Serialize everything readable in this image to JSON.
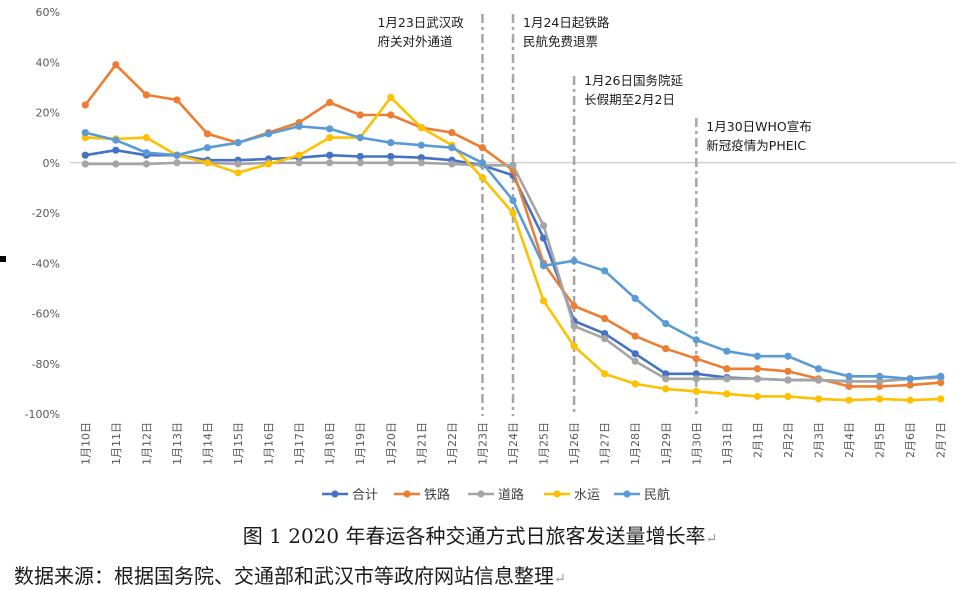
{
  "chart_data": {
    "type": "line",
    "categories": [
      "1月10日",
      "1月11日",
      "1月12日",
      "1月13日",
      "1月14日",
      "1月15日",
      "1月16日",
      "1月17日",
      "1月18日",
      "1月19日",
      "1月20日",
      "1月21日",
      "1月22日",
      "1月23日",
      "1月24日",
      "1月25日",
      "1月26日",
      "1月27日",
      "1月28日",
      "1月29日",
      "1月30日",
      "1月31日",
      "2月1日",
      "2月2日",
      "2月3日",
      "2月4日",
      "2月5日",
      "2月6日",
      "2月7日"
    ],
    "yticks": [
      "60%",
      "40%",
      "20%",
      "0%",
      "-20%",
      "-40%",
      "-60%",
      "-80%",
      "-100%"
    ],
    "ylim": [
      -100,
      60
    ],
    "series": [
      {
        "name": "合计",
        "color": "#4472C4",
        "values": [
          3,
          5,
          3,
          3,
          1,
          1,
          1.5,
          2,
          3,
          2.5,
          2.5,
          2,
          1,
          -1,
          -5,
          -30,
          -63,
          -68,
          -76,
          -84,
          -84,
          -85.5,
          -86,
          -86.5,
          -86.5,
          -87,
          -87,
          -86,
          -85.5
        ]
      },
      {
        "name": "铁路",
        "color": "#ED7D31",
        "values": [
          23,
          39,
          27,
          25,
          11.5,
          8,
          12,
          16,
          24,
          19,
          19,
          14,
          12,
          6,
          -3,
          -40,
          -57,
          -62,
          -69,
          -74,
          -78,
          -82,
          -82,
          -83,
          -86,
          -89,
          -89,
          -88.5,
          -87.5
        ]
      },
      {
        "name": "道路",
        "color": "#A5A5A5",
        "values": [
          -0.5,
          -0.5,
          -0.5,
          0,
          0,
          -0.5,
          0,
          0,
          0,
          0,
          0,
          0,
          -0.5,
          -1,
          -1,
          -25,
          -65,
          -70,
          -79,
          -86,
          -86,
          -86,
          -86,
          -86.5,
          -86.5,
          -87,
          -87,
          -86,
          -85.5
        ]
      },
      {
        "name": "水运",
        "color": "#FFC000",
        "values": [
          10,
          9.5,
          10,
          3,
          0,
          -4,
          -0.5,
          3,
          10,
          10,
          26,
          14,
          7,
          -6,
          -20,
          -55,
          -73,
          -84,
          -88,
          -90,
          -91,
          -92,
          -93,
          -93,
          -94,
          -94.5,
          -94,
          -94.5,
          -94
        ]
      },
      {
        "name": "民航",
        "color": "#5B9BD5",
        "values": [
          12,
          9,
          4,
          3,
          6,
          8,
          11.5,
          14.5,
          13.5,
          10,
          8,
          7,
          6,
          0,
          -15,
          -41,
          -39,
          -43,
          -54,
          -64,
          -70.5,
          -75,
          -77,
          -77,
          -82,
          -85,
          -85,
          -86,
          -85
        ]
      }
    ],
    "annotations": [
      {
        "category": "1月23日",
        "lines": [
          "1月23日武汉政",
          "府关对外通道"
        ]
      },
      {
        "category": "1月24日",
        "lines": [
          "1月24日起铁路",
          "民航免费退票"
        ]
      },
      {
        "category": "1月26日",
        "lines": [
          "1月26日国务院延",
          "长假期至2月2日"
        ]
      },
      {
        "category": "1月30日",
        "lines": [
          "1月30日WHO宣布",
          "新冠疫情为PHEIC"
        ]
      }
    ]
  },
  "caption": "图 1 2020 年春运各种交通方式日旅客发送量增长率",
  "source": "数据来源：根据国务院、交通部和武汉市等政府网站信息整理",
  "paragraph_mark": "↵"
}
